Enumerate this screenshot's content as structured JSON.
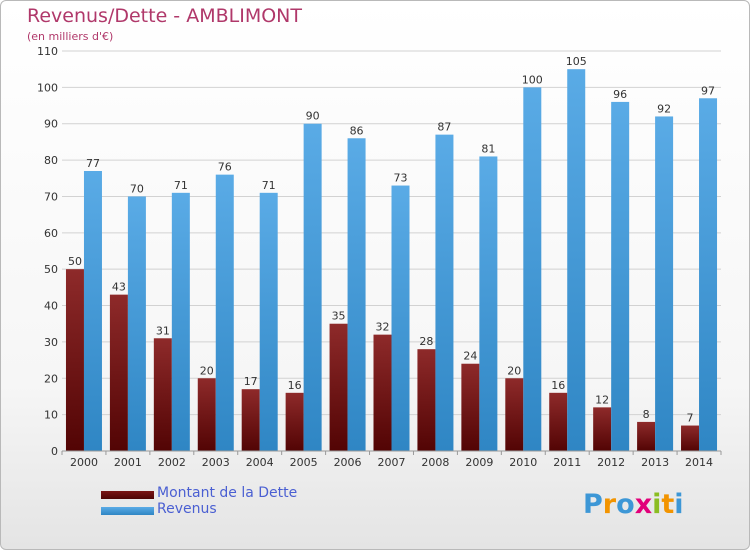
{
  "title": "Revenus/Dette - AMBLIMONT",
  "subtitle": "(en milliers d'€)",
  "colors": {
    "dette": "#7a1515",
    "revenus": "#3d97d6",
    "grid": "#d2d2d2",
    "axis_text": "#333333",
    "title": "#b0386a",
    "legend_text": "#4a5fd2"
  },
  "chart_data": {
    "type": "bar",
    "categories": [
      "2000",
      "2001",
      "2002",
      "2003",
      "2004",
      "2005",
      "2006",
      "2007",
      "2008",
      "2009",
      "2010",
      "2011",
      "2012",
      "2013",
      "2014"
    ],
    "series": [
      {
        "name": "Montant de la Dette",
        "values": [
          50,
          43,
          31,
          20,
          17,
          16,
          35,
          32,
          28,
          24,
          20,
          16,
          12,
          8,
          7
        ]
      },
      {
        "name": "Revenus",
        "values": [
          77,
          70,
          71,
          76,
          71,
          90,
          86,
          73,
          87,
          81,
          100,
          105,
          96,
          92,
          97
        ]
      }
    ],
    "yticks": [
      "0",
      "10",
      "20",
      "30",
      "40",
      "50",
      "60",
      "70",
      "80",
      "90",
      "100",
      "110"
    ],
    "ylim": [
      0,
      110
    ],
    "grid": true,
    "legend_position": "bottom-left"
  },
  "legend": [
    {
      "label": "Montant de la Dette"
    },
    {
      "label": "Revenus"
    }
  ],
  "brand": {
    "letters": [
      "P",
      "r",
      "o",
      "x",
      "i",
      "t",
      "i"
    ],
    "colors": [
      "#3d97d6",
      "#f29400",
      "#3d97d6",
      "#e2007a",
      "#8bbd22",
      "#f29400",
      "#3d97d6"
    ]
  }
}
